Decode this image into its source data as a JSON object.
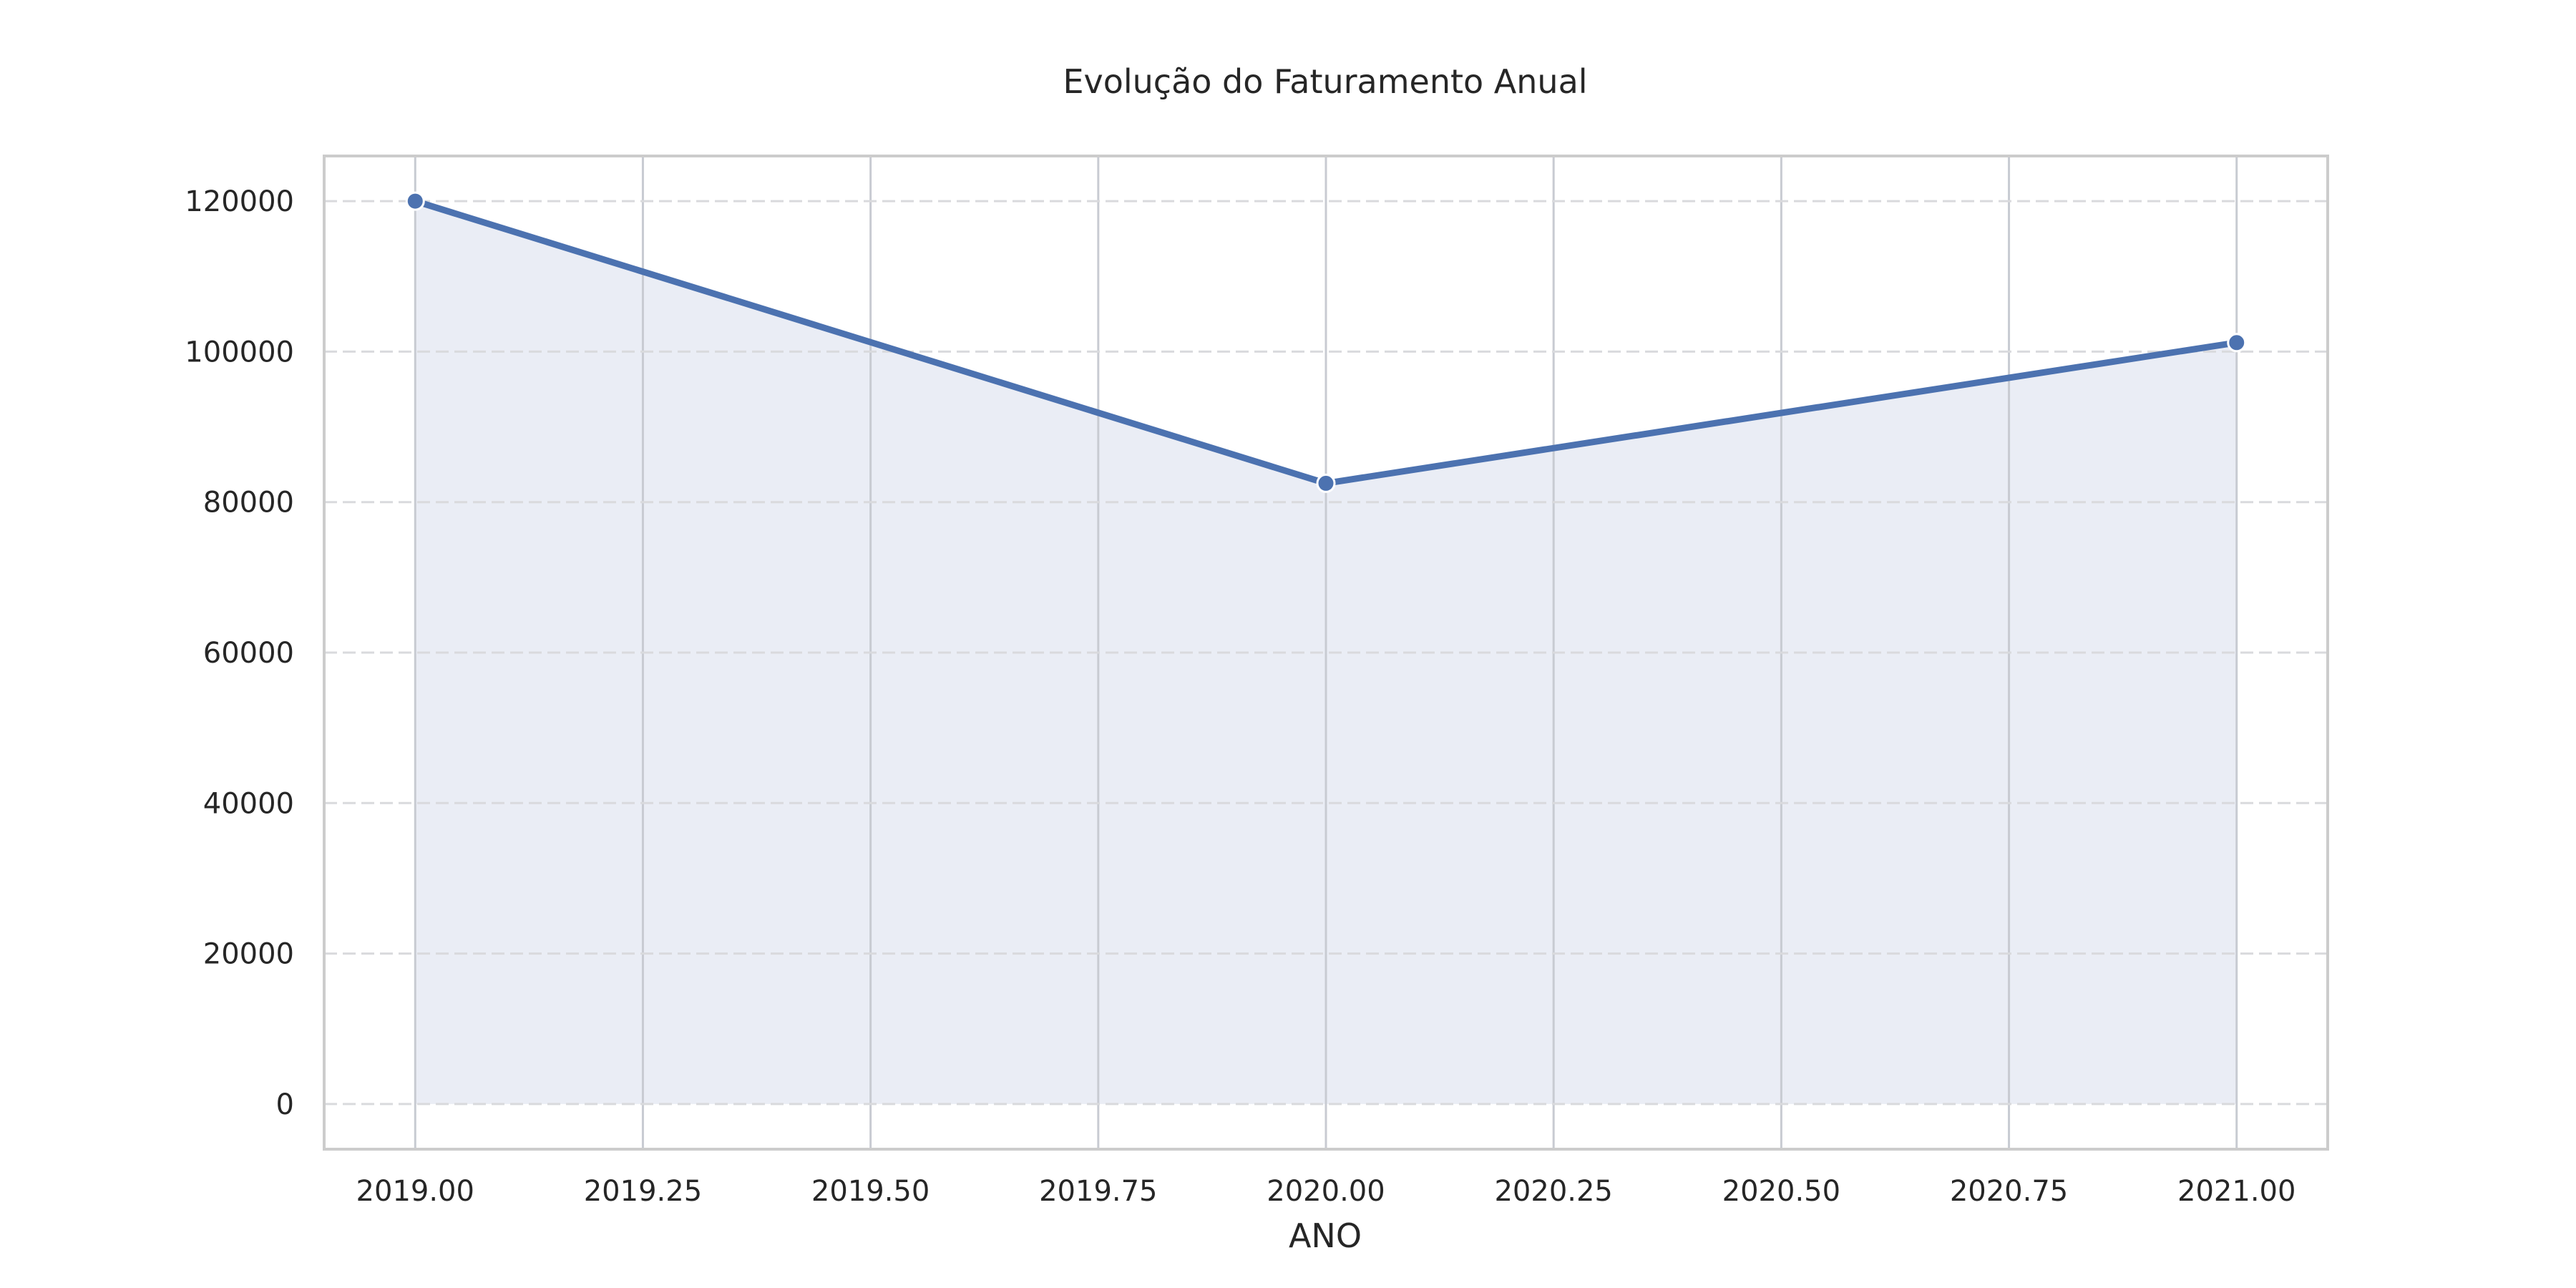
{
  "chart_data": {
    "type": "area",
    "title": "Evolução do Faturamento Anual",
    "xlabel": "ANO",
    "ylabel": "",
    "x": [
      2019,
      2020,
      2021
    ],
    "series": [
      {
        "values": [
          120000,
          82500,
          101200
        ]
      }
    ],
    "xlim": [
      2018.9,
      2021.1
    ],
    "ylim": [
      -6000,
      126000
    ],
    "xticks": [
      2019.0,
      2019.25,
      2019.5,
      2019.75,
      2020.0,
      2020.25,
      2020.5,
      2020.75,
      2021.0
    ],
    "xtick_labels": [
      "2019.00",
      "2019.25",
      "2019.50",
      "2019.75",
      "2020.00",
      "2020.25",
      "2020.50",
      "2020.75",
      "2021.00"
    ],
    "yticks": [
      0,
      20000,
      40000,
      60000,
      80000,
      100000,
      120000
    ],
    "ytick_labels": [
      "0",
      "20000",
      "40000",
      "60000",
      "80000",
      "100000",
      "120000"
    ],
    "grid": {
      "x": "solid",
      "y": "dashed"
    },
    "legend": "none",
    "colors": {
      "line": "#4c72b0",
      "fill": "#eaedf5",
      "grid_x": "#c8cbd2",
      "grid_y": "#d9dadd",
      "frame": "#cccccc",
      "marker_edge": "#ffffff"
    }
  }
}
